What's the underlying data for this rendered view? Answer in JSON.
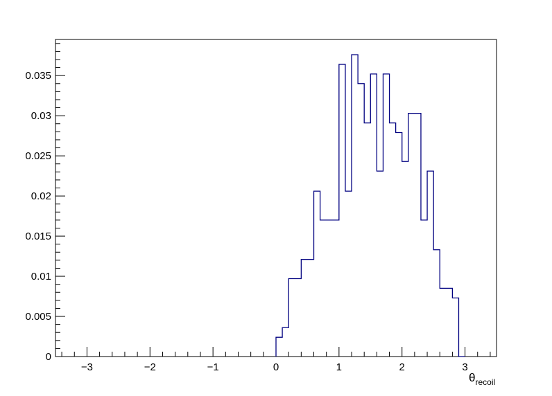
{
  "chart_data": {
    "type": "histogram",
    "title": "",
    "xlabel_main": "θ",
    "xlabel_sub": "recoil",
    "ylabel": "",
    "xlim": [
      -3.5,
      3.5
    ],
    "ylim": [
      0,
      0.0395
    ],
    "bin_edges": [
      -0.0,
      0.1,
      0.2,
      0.4,
      0.6,
      0.7,
      1.0,
      1.1,
      1.2,
      1.3,
      1.4,
      1.5,
      1.6,
      1.7,
      1.8,
      1.9,
      2.0,
      2.1,
      2.3,
      2.4,
      2.5,
      2.6,
      2.8,
      2.9,
      3.0
    ],
    "bin_values": [
      0.0024,
      0.0036,
      0.0097,
      0.0121,
      0.0206,
      0.017,
      0.0364,
      0.0206,
      0.0376,
      0.034,
      0.0291,
      0.0352,
      0.0231,
      0.0352,
      0.0291,
      0.0279,
      0.0243,
      0.0303,
      0.017,
      0.0231,
      0.0133,
      0.0085,
      0.0073,
      0.0
    ],
    "x_ticks": [
      -3,
      -2,
      -1,
      0,
      1,
      2,
      3
    ],
    "x_tick_labels": [
      "−3",
      "−2",
      "−1",
      "0",
      "1",
      "2",
      "3"
    ],
    "y_ticks": [
      0,
      0.005,
      0.01,
      0.015,
      0.02,
      0.025,
      0.03,
      0.035
    ],
    "y_tick_labels": [
      "0",
      "0.005",
      "0.01",
      "0.015",
      "0.02",
      "0.025",
      "0.03",
      "0.035"
    ],
    "line_color": "#000080",
    "grid": false,
    "legend": "none"
  }
}
